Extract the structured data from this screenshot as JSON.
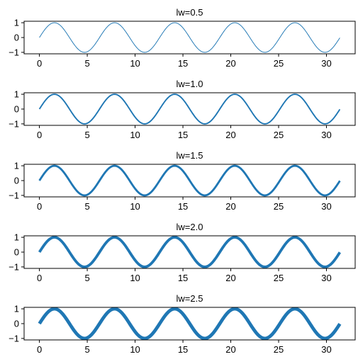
{
  "chart_data": [
    {
      "type": "line",
      "title": "lw=0.5",
      "line_width": 0.5,
      "xlim": [
        -1.6,
        33.0
      ],
      "ylim": [
        -1.1,
        1.1
      ],
      "x_ticks": [
        0,
        5,
        10,
        15,
        20,
        25,
        30
      ],
      "y_ticks": [
        1,
        0,
        -1
      ],
      "y_tick_labels": [
        "1",
        "0",
        "−1"
      ],
      "series": [
        {
          "function": "sin(x)",
          "x_range": [
            0,
            31.4
          ],
          "color": "#1f77b4"
        }
      ]
    },
    {
      "type": "line",
      "title": "lw=1.0",
      "line_width": 1.0,
      "xlim": [
        -1.6,
        33.0
      ],
      "ylim": [
        -1.1,
        1.1
      ],
      "x_ticks": [
        0,
        5,
        10,
        15,
        20,
        25,
        30
      ],
      "y_ticks": [
        1,
        0,
        -1
      ],
      "y_tick_labels": [
        "1",
        "0",
        "−1"
      ],
      "series": [
        {
          "function": "sin(x)",
          "x_range": [
            0,
            31.4
          ],
          "color": "#1f77b4"
        }
      ]
    },
    {
      "type": "line",
      "title": "lw=1.5",
      "line_width": 1.5,
      "xlim": [
        -1.6,
        33.0
      ],
      "ylim": [
        -1.1,
        1.1
      ],
      "x_ticks": [
        0,
        5,
        10,
        15,
        20,
        25,
        30
      ],
      "y_ticks": [
        1,
        0,
        -1
      ],
      "y_tick_labels": [
        "1",
        "0",
        "−1"
      ],
      "series": [
        {
          "function": "sin(x)",
          "x_range": [
            0,
            31.4
          ],
          "color": "#1f77b4"
        }
      ]
    },
    {
      "type": "line",
      "title": "lw=2.0",
      "line_width": 2.0,
      "xlim": [
        -1.6,
        33.0
      ],
      "ylim": [
        -1.1,
        1.1
      ],
      "x_ticks": [
        0,
        5,
        10,
        15,
        20,
        25,
        30
      ],
      "y_ticks": [
        1,
        0,
        -1
      ],
      "y_tick_labels": [
        "1",
        "0",
        "−1"
      ],
      "series": [
        {
          "function": "sin(x)",
          "x_range": [
            0,
            31.4
          ],
          "color": "#1f77b4"
        }
      ]
    },
    {
      "type": "line",
      "title": "lw=2.5",
      "line_width": 2.5,
      "xlim": [
        -1.6,
        33.0
      ],
      "ylim": [
        -1.1,
        1.1
      ],
      "x_ticks": [
        0,
        5,
        10,
        15,
        20,
        25,
        30
      ],
      "y_ticks": [
        1,
        0,
        -1
      ],
      "y_tick_labels": [
        "1",
        "0",
        "−1"
      ],
      "series": [
        {
          "function": "sin(x)",
          "x_range": [
            0,
            31.4
          ],
          "color": "#1f77b4"
        }
      ]
    }
  ]
}
